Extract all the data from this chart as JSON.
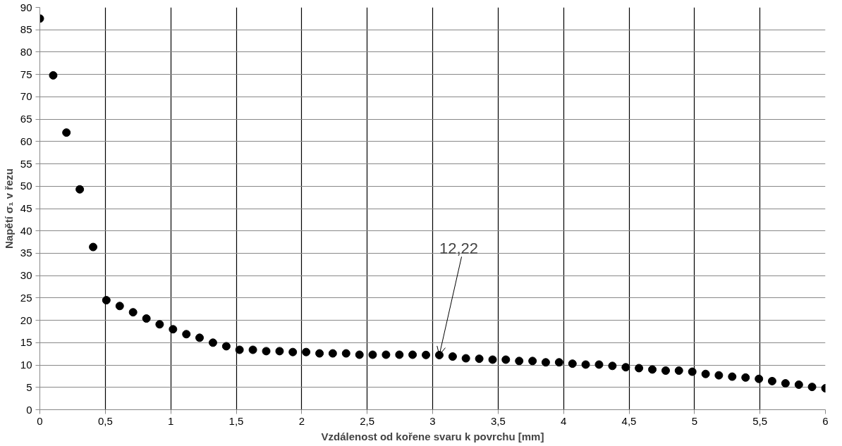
{
  "chart_data": {
    "type": "scatter",
    "xlabel": "Vzdálenost od kořene svaru k povrchu [mm]",
    "ylabel": "Napětí σ₁ v řezu",
    "x": [
      0,
      0.102,
      0.203,
      0.305,
      0.407,
      0.508,
      0.61,
      0.712,
      0.814,
      0.915,
      1.017,
      1.119,
      1.22,
      1.322,
      1.424,
      1.525,
      1.627,
      1.729,
      1.831,
      1.932,
      2.034,
      2.136,
      2.237,
      2.339,
      2.441,
      2.542,
      2.644,
      2.746,
      2.847,
      2.949,
      3.051,
      3.153,
      3.254,
      3.356,
      3.458,
      3.559,
      3.661,
      3.763,
      3.864,
      3.966,
      4.068,
      4.169,
      4.271,
      4.373,
      4.475,
      4.576,
      4.678,
      4.78,
      4.881,
      4.983,
      5.085,
      5.186,
      5.288,
      5.39,
      5.492,
      5.593,
      5.695,
      5.797,
      5.898,
      6
    ],
    "series": [
      {
        "color": "#000000",
        "values": [
          87.5,
          74.8,
          62,
          49.3,
          36.4,
          24.5,
          23.2,
          21.8,
          20.4,
          19.1,
          18,
          16.9,
          16.1,
          15,
          14.2,
          13.4,
          13.4,
          13.1,
          13.1,
          12.9,
          12.9,
          12.6,
          12.6,
          12.6,
          12.3,
          12.3,
          12.3,
          12.3,
          12.3,
          12.25,
          12.22,
          11.9,
          11.5,
          11.4,
          11.2,
          11.2,
          10.9,
          10.9,
          10.6,
          10.6,
          10.3,
          10.1,
          10.1,
          9.8,
          9.5,
          9.3,
          9,
          8.75,
          8.75,
          8.5,
          8,
          7.7,
          7.4,
          7.2,
          6.9,
          6.4,
          5.9,
          5.6,
          5.1,
          4.8
        ]
      }
    ],
    "annotations": [
      {
        "text": "12,22",
        "x": 3.051,
        "y": 12.22
      }
    ],
    "xlim": [
      0,
      6
    ],
    "ylim": [
      0,
      90
    ],
    "xticks": [
      0,
      {
        "value": 0.5,
        "label": "0,5"
      },
      1,
      {
        "value": 1.5,
        "label": "1,5"
      },
      2,
      {
        "value": 2.5,
        "label": "2,5"
      },
      3,
      {
        "value": 3.5,
        "label": "3,5"
      },
      4,
      {
        "value": 4.5,
        "label": "4,5"
      },
      5,
      {
        "value": 5.5,
        "label": "5,5"
      },
      6
    ],
    "yticks": [
      0,
      5,
      10,
      15,
      20,
      25,
      30,
      35,
      40,
      45,
      50,
      55,
      60,
      65,
      70,
      75,
      80,
      85,
      90
    ],
    "grid": true,
    "marker": "circle"
  }
}
